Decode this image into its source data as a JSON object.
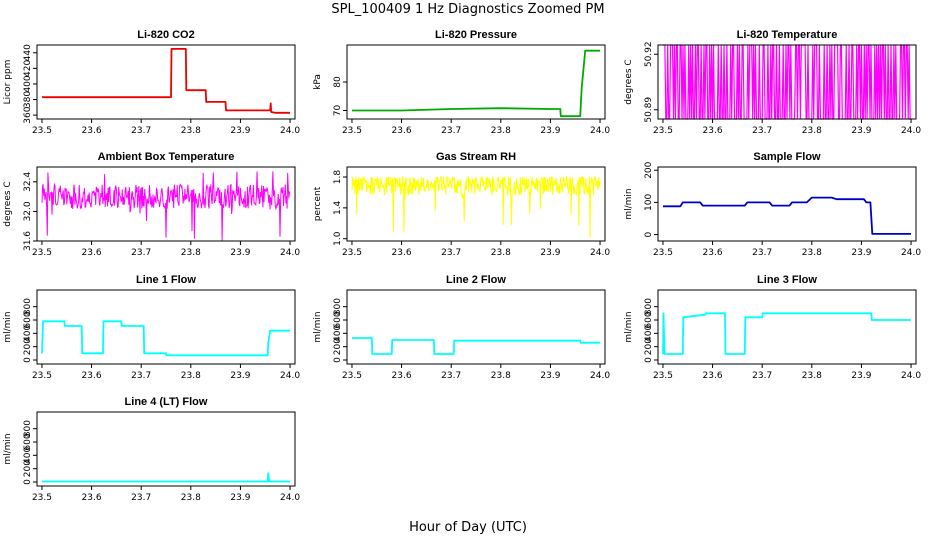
{
  "figure": {
    "title": "SPL_100409  1 Hz Diagnostics Zoomed PM",
    "xlabel": "Hour of Day (UTC)"
  },
  "chart_data": [
    {
      "type": "line",
      "title": "Li-820 CO2",
      "ylabel": "Licor ppm",
      "color": "#ee0000",
      "xlim": [
        23.49,
        24.01
      ],
      "ylim": [
        355,
        450
      ],
      "x_ticks": [
        "23.5",
        "23.6",
        "23.7",
        "23.8",
        "23.9",
        "24.0"
      ],
      "y_ticks": [
        "360",
        "380",
        "400",
        "420",
        "440"
      ],
      "series": [
        {
          "name": "CO2",
          "x": [
            23.5,
            23.55,
            23.6,
            23.65,
            23.7,
            23.75,
            23.76,
            23.761,
            23.79,
            23.791,
            23.83,
            23.831,
            23.87,
            23.871,
            23.96,
            23.961,
            23.962,
            23.97,
            24.0
          ],
          "y": [
            383,
            383,
            383,
            383,
            383,
            383,
            383,
            445,
            445,
            392,
            392,
            377,
            377,
            366,
            366,
            375,
            364,
            363,
            363
          ]
        }
      ]
    },
    {
      "type": "line",
      "title": "Li-820 Pressure",
      "ylabel": "kPa",
      "color": "#00aa00",
      "xlim": [
        23.49,
        24.01
      ],
      "ylim": [
        67,
        93
      ],
      "x_ticks": [
        "23.5",
        "23.6",
        "23.7",
        "23.8",
        "23.9",
        "24.0"
      ],
      "y_ticks": [
        "70",
        "80"
      ],
      "series": [
        {
          "name": "Pressure",
          "x": [
            23.5,
            23.6,
            23.7,
            23.8,
            23.9,
            23.92,
            23.921,
            23.96,
            23.963,
            23.97,
            24.0
          ],
          "y": [
            70,
            70,
            70.5,
            70.8,
            70.5,
            70.5,
            68,
            68,
            78,
            91,
            91
          ]
        }
      ]
    },
    {
      "type": "line",
      "title": "Li-820 Temperature",
      "ylabel": "degrees C",
      "color": "#ff00ff",
      "xlim": [
        23.49,
        24.01
      ],
      "ylim": [
        50.885,
        50.925
      ],
      "x_ticks": [
        "23.5",
        "23.6",
        "23.7",
        "23.8",
        "23.9",
        "24.0"
      ],
      "y_ticks": [
        "50.89",
        "50.92"
      ],
      "series": [
        {
          "name": "Temperature",
          "x": [
            23.5,
            24.0
          ],
          "low": 50.885,
          "high": 50.925,
          "pattern": "toggling"
        }
      ]
    },
    {
      "type": "line",
      "title": "Ambient Box Temperature",
      "ylabel": "degrees C",
      "color": "#ff00ff",
      "xlim": [
        23.49,
        24.01
      ],
      "ylim": [
        31.6,
        32.6
      ],
      "x_ticks": [
        "23.5",
        "23.6",
        "23.7",
        "23.8",
        "23.9",
        "24.0"
      ],
      "y_ticks": [
        "31.6",
        "32.0",
        "32.4"
      ],
      "series": [
        {
          "name": "Box Temperature",
          "x": [
            23.5,
            24.0
          ],
          "mean": 32.2,
          "range": [
            31.6,
            32.55
          ],
          "pattern": "noise"
        }
      ]
    },
    {
      "type": "line",
      "title": "Gas Stream RH",
      "ylabel": "percent",
      "color": "#ffff00",
      "xlim": [
        23.49,
        24.01
      ],
      "ylim": [
        0.97,
        1.93
      ],
      "x_ticks": [
        "23.5",
        "23.6",
        "23.7",
        "23.8",
        "23.9",
        "24.0"
      ],
      "y_ticks": [
        "1.0",
        "1.4",
        "1.8"
      ],
      "series": [
        {
          "name": "RH",
          "x": [
            23.5,
            24.0
          ],
          "mean": 1.7,
          "range": [
            1.0,
            1.8
          ],
          "pattern": "noise"
        }
      ]
    },
    {
      "type": "line",
      "title": "Sample Flow",
      "ylabel": "ml/min",
      "color": "#0000cc",
      "xlim": [
        23.49,
        24.01
      ],
      "ylim": [
        -20,
        210
      ],
      "x_ticks": [
        "23.5",
        "23.6",
        "23.7",
        "23.8",
        "23.9",
        "24.0"
      ],
      "y_ticks": [
        "0",
        "100",
        "200"
      ],
      "series": [
        {
          "name": "Sample Flow",
          "x": [
            23.5,
            23.535,
            23.54,
            23.575,
            23.58,
            23.665,
            23.67,
            23.715,
            23.72,
            23.755,
            23.76,
            23.79,
            23.8,
            23.84,
            23.85,
            23.905,
            23.91,
            23.918,
            23.922,
            24.0
          ],
          "y": [
            88,
            88,
            100,
            100,
            90,
            90,
            100,
            100,
            90,
            90,
            100,
            100,
            115,
            115,
            110,
            110,
            100,
            100,
            2,
            2
          ]
        }
      ]
    },
    {
      "type": "line",
      "title": "Line 1 Flow",
      "ylabel": "ml/min",
      "color": "#00ffff",
      "xlim": [
        23.49,
        24.01
      ],
      "ylim": [
        -60,
        1050
      ],
      "x_ticks": [
        "23.5",
        "23.6",
        "23.7",
        "23.8",
        "23.9",
        "24.0"
      ],
      "y_ticks": [
        "0",
        "200",
        "400",
        "600",
        "800"
      ],
      "series": [
        {
          "name": "Line 1",
          "x": [
            23.5,
            23.502,
            23.545,
            23.546,
            23.58,
            23.581,
            23.623,
            23.624,
            23.66,
            23.661,
            23.705,
            23.706,
            23.75,
            23.751,
            23.955,
            23.956,
            23.96,
            24.0
          ],
          "y": [
            100,
            580,
            580,
            510,
            510,
            100,
            100,
            580,
            580,
            510,
            510,
            100,
            100,
            70,
            70,
            250,
            440,
            440
          ]
        }
      ]
    },
    {
      "type": "line",
      "title": "Line 2 Flow",
      "ylabel": "ml/min",
      "color": "#00ffff",
      "xlim": [
        23.49,
        24.01
      ],
      "ylim": [
        -60,
        1050
      ],
      "x_ticks": [
        "23.5",
        "23.6",
        "23.7",
        "23.8",
        "23.9",
        "24.0"
      ],
      "y_ticks": [
        "0",
        "200",
        "400",
        "600",
        "800"
      ],
      "series": [
        {
          "name": "Line 2",
          "x": [
            23.5,
            23.54,
            23.541,
            23.58,
            23.581,
            23.665,
            23.666,
            23.705,
            23.706,
            23.96,
            23.961,
            24.0
          ],
          "y": [
            330,
            330,
            90,
            90,
            300,
            300,
            90,
            90,
            290,
            290,
            260,
            260
          ]
        }
      ]
    },
    {
      "type": "line",
      "title": "Line 3 Flow",
      "ylabel": "ml/min",
      "color": "#00ffff",
      "xlim": [
        23.49,
        24.01
      ],
      "ylim": [
        -60,
        1050
      ],
      "x_ticks": [
        "23.5",
        "23.6",
        "23.7",
        "23.8",
        "23.9",
        "24.0"
      ],
      "y_ticks": [
        "0",
        "200",
        "400",
        "600",
        "800"
      ],
      "series": [
        {
          "name": "Line 3",
          "x": [
            23.5,
            23.501,
            23.503,
            23.54,
            23.541,
            23.585,
            23.586,
            23.625,
            23.626,
            23.665,
            23.666,
            23.7,
            23.701,
            23.92,
            23.921,
            24.0
          ],
          "y": [
            90,
            700,
            90,
            90,
            640,
            680,
            700,
            700,
            90,
            90,
            640,
            640,
            700,
            700,
            600,
            600
          ]
        }
      ]
    },
    {
      "type": "line",
      "title": "Line 4 (LT) Flow",
      "ylabel": "ml/min",
      "color": "#00ffff",
      "xlim": [
        23.49,
        24.01
      ],
      "ylim": [
        -60,
        1050
      ],
      "x_ticks": [
        "23.5",
        "23.6",
        "23.7",
        "23.8",
        "23.9",
        "24.0"
      ],
      "y_ticks": [
        "0",
        "200",
        "400",
        "600",
        "800"
      ],
      "series": [
        {
          "name": "Line 4",
          "x": [
            23.5,
            23.955,
            23.956,
            23.958,
            23.96,
            24.0
          ],
          "y": [
            8,
            8,
            130,
            8,
            8,
            8
          ]
        }
      ]
    }
  ]
}
